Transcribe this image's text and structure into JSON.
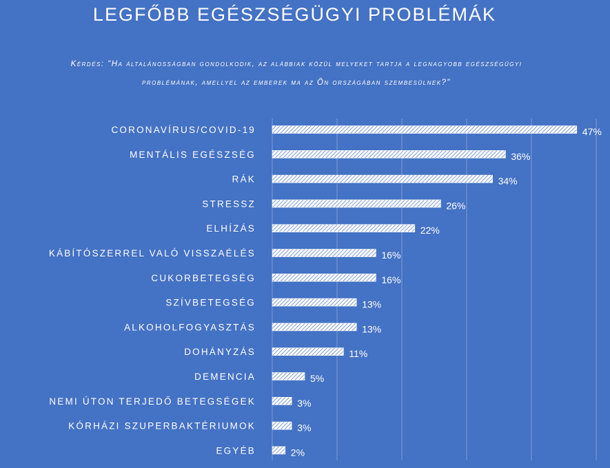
{
  "title": "LEGFŐBB EGÉSZSÉGÜGYI PROBLÉMÁK",
  "subtitle": "Kérdés: \"Ha általánosságban gondolkodik, az alábbiak közül melyeket tartja a legnagyobb egészségügyi problémának, amellyel az emberek ma az Ön országában szembesülnek?\"",
  "colors": {
    "background": "#4472C4",
    "bar": "#ffffff",
    "text": "#ffffff",
    "grid": "#7F9BD6"
  },
  "chart_data": {
    "type": "bar",
    "orientation": "horizontal",
    "bar_pattern": "diagonal-hatch",
    "categories": [
      "CORONAVÍRUS/COVID-19",
      "MENTÁLIS EGÉSZSÉG",
      "RÁK",
      "STRESSZ",
      "ELHÍZÁS",
      "KÁBÍTÓSZERREL VALÓ VISSZAÉLÉS",
      "CUKORBETEGSÉG",
      "SZÍVBETEGSÉG",
      "ALKOHOLFOGYASZTÁS",
      "DOHÁNYZÁS",
      "DEMENCIA",
      "NEMI ÚTON TERJEDŐ BETEGSÉGEK",
      "KÓRHÁZI SZUPERBAKTÉRIUMOK",
      "EGYÉB"
    ],
    "values": [
      47,
      36,
      34,
      26,
      22,
      16,
      16,
      13,
      13,
      11,
      5,
      3,
      3,
      2
    ],
    "value_labels": [
      "47%",
      "36%",
      "34%",
      "26%",
      "22%",
      "16%",
      "16%",
      "13%",
      "13%",
      "11%",
      "5%",
      "3%",
      "3%",
      "2%"
    ],
    "xlim": [
      0,
      50
    ],
    "grid": true,
    "legend": false
  }
}
